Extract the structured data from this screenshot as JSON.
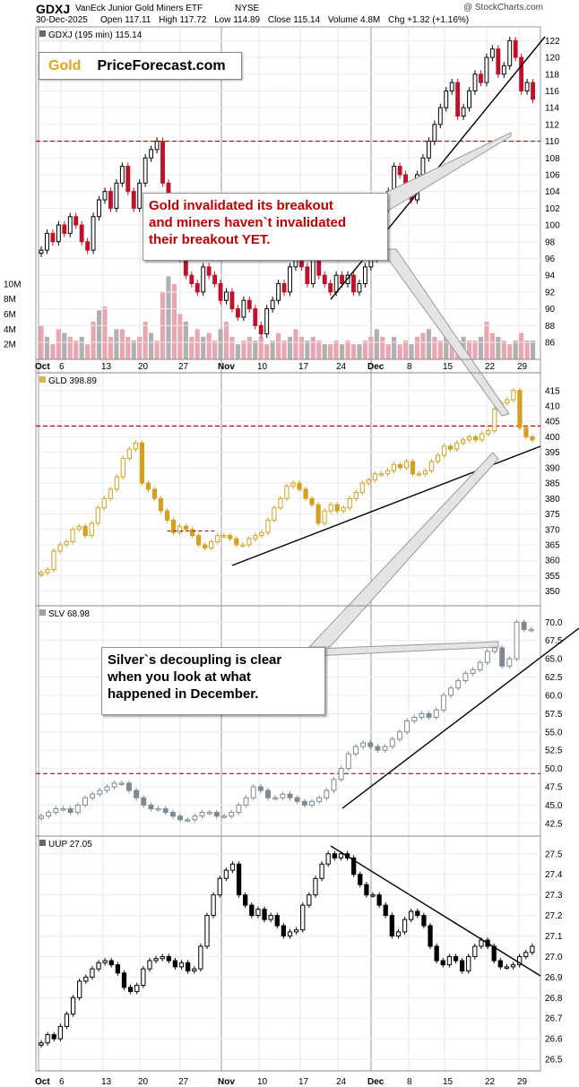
{
  "header": {
    "symbol": "GDXJ",
    "name": "VanEck Junior Gold Miners ETF",
    "exchange": "NYSE",
    "credit": "@ StockCharts.com",
    "date": "30-Dec-2025",
    "ohlc": [
      {
        "label": "Open",
        "value": "117.11"
      },
      {
        "label": "High",
        "value": "117.72"
      },
      {
        "label": "Low",
        "value": "114.89"
      },
      {
        "label": "Close",
        "value": "115.14"
      },
      {
        "label": "Volume",
        "value": "4.8M"
      },
      {
        "label": "Chg",
        "value": "+1.32 (+1.16%)"
      }
    ]
  },
  "logo": {
    "gold": "Gold",
    "rest": "PriceForecast.com"
  },
  "callouts": {
    "gold": "Gold invalidated its breakout\nand miners haven`t invalidated\ntheir breakout YET.",
    "silver": "Silver`s decoupling is clear\nwhen you look at what\nhappened in December."
  },
  "colors": {
    "up": "#000000",
    "down": "#c0102a",
    "gold": "#d4a020",
    "silver": "#7d8a94",
    "volume": "#e8a7b0",
    "volume_alt": "#b0b0b0",
    "dashed": "#c00000"
  },
  "chart_data": [
    {
      "type": "candlestick",
      "title": "GDXJ (195 min) 115.14",
      "color": "#000000",
      "yticks": [
        86,
        88,
        90,
        92,
        94,
        96,
        98,
        100,
        102,
        104,
        106,
        108,
        110,
        112,
        114,
        116,
        118,
        120,
        122
      ],
      "ylim": [
        84.5,
        123
      ],
      "volume_ticks": [
        "2M",
        "4M",
        "6M",
        "8M",
        "10M"
      ],
      "volume_values": [
        2,
        4,
        6,
        8,
        10
      ],
      "dashed_level": 110,
      "x_labels": [
        "Oct",
        "6",
        "13",
        "20",
        "27",
        "Nov",
        "10",
        "17",
        "24",
        "Dec",
        "8",
        "15",
        "22",
        "29"
      ],
      "closes": [
        97,
        99,
        98,
        100,
        99,
        101,
        100,
        98,
        97,
        101,
        103,
        104,
        102,
        105,
        107,
        104,
        102,
        105,
        108,
        109,
        110,
        105,
        101,
        100,
        96,
        94,
        93,
        92,
        95,
        94,
        93,
        91,
        92,
        90,
        89,
        91,
        90,
        88,
        87,
        90,
        91,
        93,
        92,
        95,
        97,
        95,
        93,
        96,
        94,
        93,
        92,
        94,
        93,
        94,
        92,
        93,
        95,
        96,
        98,
        102,
        104,
        107,
        106,
        104,
        103,
        106,
        108,
        110,
        112,
        114,
        116,
        117,
        113,
        114,
        116,
        118,
        117,
        120,
        121,
        118,
        119,
        122,
        120,
        116,
        117,
        115
      ],
      "volume": [
        4.5,
        3,
        2,
        4,
        3.5,
        3,
        2.5,
        3,
        2,
        5,
        6.5,
        7,
        3,
        4,
        4,
        3,
        2.5,
        3,
        5,
        3.5,
        2.5,
        9,
        11,
        10,
        6,
        5,
        3,
        4,
        3,
        3.5,
        2.5,
        4,
        5,
        3,
        2,
        2.5,
        3,
        2.5,
        3,
        2,
        2.5,
        3.5,
        2.5,
        3,
        4,
        3,
        2.5,
        3,
        2.5,
        2,
        2,
        2.5,
        2,
        2.5,
        2,
        2,
        2.5,
        3,
        4,
        3,
        2,
        3,
        2,
        2.5,
        2,
        3,
        3.5,
        4,
        3,
        2.5,
        4,
        3,
        2.5,
        3,
        2.5,
        2.5,
        3,
        5,
        3.5,
        3,
        2.5,
        2,
        2.5,
        3.5,
        2.5,
        2.5
      ]
    },
    {
      "type": "candlestick",
      "title": "GLD 398.89",
      "color": "#d4a020",
      "yticks": [
        350,
        355,
        360,
        365,
        370,
        375,
        380,
        385,
        390,
        395,
        400,
        405,
        410,
        415
      ],
      "ylim": [
        347,
        419
      ],
      "dashed_level": 403.5,
      "closes": [
        356,
        357,
        363,
        365,
        366,
        370,
        371,
        368,
        372,
        377,
        380,
        383,
        387,
        393,
        396,
        398,
        385,
        383,
        380,
        376,
        373,
        369,
        371,
        370,
        368,
        365,
        364,
        366,
        368,
        368,
        367,
        365,
        365,
        367,
        368,
        369,
        373,
        377,
        380,
        384,
        385,
        383,
        380,
        378,
        372,
        376,
        378,
        376,
        377,
        380,
        382,
        385,
        386,
        388,
        388,
        389,
        391,
        390,
        392,
        388,
        388,
        389,
        392,
        394,
        397,
        396,
        398,
        399,
        400,
        399,
        401,
        402,
        409,
        411,
        412,
        415,
        403,
        400,
        399
      ],
      "extra_dashed": {
        "from_index": 20,
        "to_index": 28,
        "level": 369.5
      }
    },
    {
      "type": "candlestick",
      "title": "SLV 68.98",
      "color": "#7d8a94",
      "yticks": [
        42.5,
        45.0,
        47.5,
        50.0,
        52.5,
        55.0,
        57.5,
        60.0,
        62.5,
        65.0,
        67.5,
        70.0
      ],
      "ylim": [
        41.5,
        71.5
      ],
      "dashed_level": 49.3,
      "closes": [
        43.5,
        44,
        44.5,
        44.5,
        44,
        45,
        46,
        46.5,
        47,
        47.5,
        48,
        48,
        47,
        46,
        45,
        44.5,
        44.5,
        44,
        43.5,
        43,
        43,
        43.5,
        44,
        44,
        43.5,
        43.5,
        44,
        45,
        46,
        47.5,
        47,
        46,
        46,
        46.5,
        46,
        45.5,
        45,
        45.5,
        46,
        47,
        48.5,
        50,
        52,
        53,
        53.5,
        53,
        52.5,
        53,
        54,
        55,
        56.5,
        57,
        57.5,
        57,
        58,
        60,
        61,
        62,
        63,
        63.5,
        64.5,
        66,
        66.5,
        64,
        65,
        70,
        69,
        69
      ],
      "extra_dashed": null
    },
    {
      "type": "candlestick",
      "title": "UUP 27.05",
      "color": "#000000",
      "yticks": [
        26.5,
        26.6,
        26.7,
        26.8,
        26.9,
        27.0,
        27.1,
        27.2,
        27.3,
        27.4,
        27.5
      ],
      "ylim": [
        26.47,
        27.56
      ],
      "dashed_level": null,
      "x_labels": [
        "Oct",
        "6",
        "13",
        "20",
        "27",
        "Nov",
        "10",
        "17",
        "24",
        "Dec",
        "8",
        "15",
        "22",
        "29"
      ],
      "closes": [
        26.58,
        26.62,
        26.6,
        26.66,
        26.72,
        26.8,
        26.88,
        26.9,
        26.94,
        26.97,
        26.98,
        26.96,
        26.92,
        26.85,
        26.83,
        26.86,
        26.94,
        26.98,
        26.99,
        27.0,
        26.98,
        26.95,
        26.97,
        26.93,
        26.94,
        27.05,
        27.2,
        27.3,
        27.38,
        27.42,
        27.45,
        27.3,
        27.25,
        27.2,
        27.23,
        27.18,
        27.2,
        27.15,
        27.1,
        27.12,
        27.13,
        27.25,
        27.3,
        27.38,
        27.45,
        27.5,
        27.48,
        27.5,
        27.48,
        27.4,
        27.35,
        27.3,
        27.3,
        27.25,
        27.2,
        27.1,
        27.12,
        27.18,
        27.22,
        27.2,
        27.15,
        27.05,
        26.98,
        26.96,
        27.0,
        26.98,
        26.93,
        27.0,
        27.05,
        27.08,
        27.05,
        26.98,
        26.95,
        26.95,
        26.96,
        27.0,
        27.02,
        27.05
      ]
    }
  ]
}
